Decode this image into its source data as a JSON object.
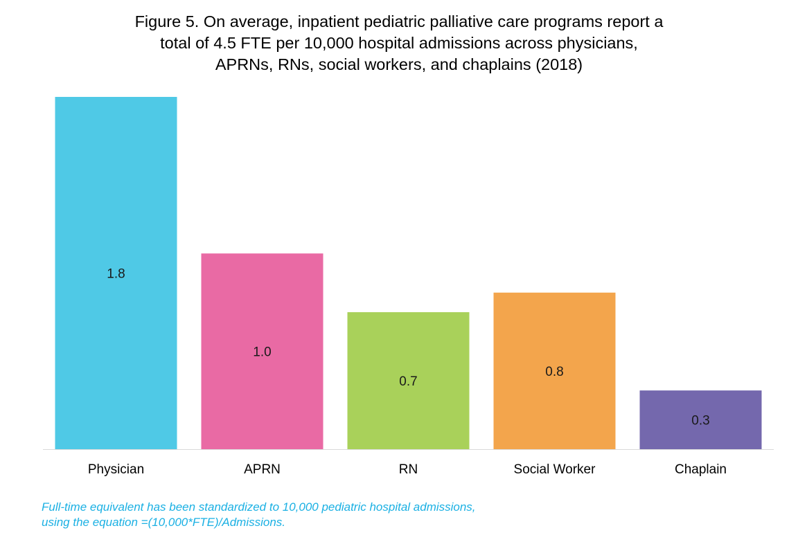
{
  "chart_data": {
    "type": "bar",
    "title_lines": [
      "Figure 5. On average, inpatient pediatric palliative care programs report a",
      "total of 4.5 FTE per 10,000 hospital admissions across physicians,",
      "APRNs, RNs, social workers, and chaplains (2018)"
    ],
    "categories": [
      "Physician",
      "APRN",
      "RN",
      "Social Worker",
      "Chaplain"
    ],
    "values": [
      1.8,
      1.0,
      0.7,
      0.8,
      0.3
    ],
    "value_labels": [
      "1.8",
      "1.0",
      "0.7",
      "0.8",
      "0.3"
    ],
    "colors": [
      "#4fc9e6",
      "#e96aa4",
      "#a9d15a",
      "#f3a54c",
      "#7468ad"
    ],
    "xlabel": "",
    "ylabel": "",
    "ylim": [
      0,
      1.8
    ],
    "grid": false,
    "legend": "none"
  },
  "footnote": {
    "line1": "Full-time equivalent has been standardized to 10,000 pediatric hospital admissions,",
    "line2": "using the equation =(10,000*FTE)/Admissions."
  }
}
